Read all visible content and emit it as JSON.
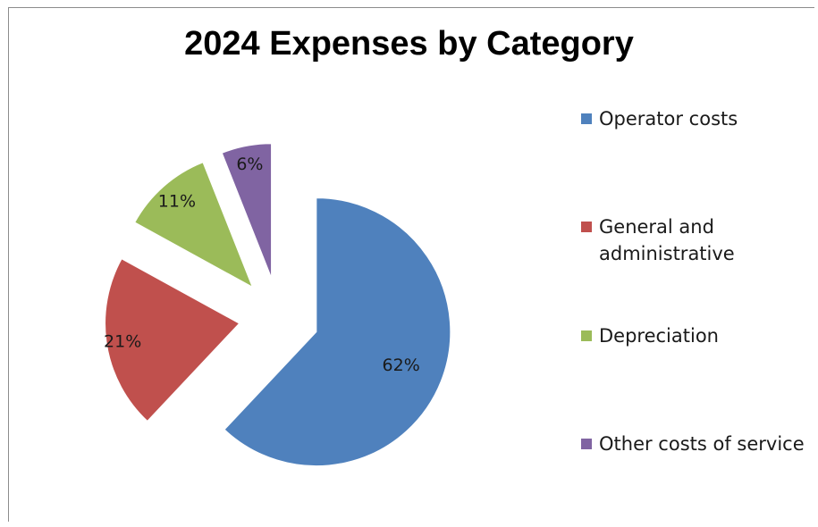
{
  "chart_data": {
    "type": "pie",
    "title": "2024 Expenses by Category",
    "legend_position": "right",
    "slices": [
      {
        "label": "Operator costs",
        "value": 62,
        "display": "62%",
        "color": "#4f81bd"
      },
      {
        "label": "General and administrative",
        "value": 21,
        "display": "21%",
        "color": "#c0504d"
      },
      {
        "label": "Depreciation",
        "value": 11,
        "display": "11%",
        "color": "#9bbb59"
      },
      {
        "label": "Other costs of service",
        "value": 6,
        "display": "6%",
        "color": "#8064a2"
      }
    ]
  }
}
